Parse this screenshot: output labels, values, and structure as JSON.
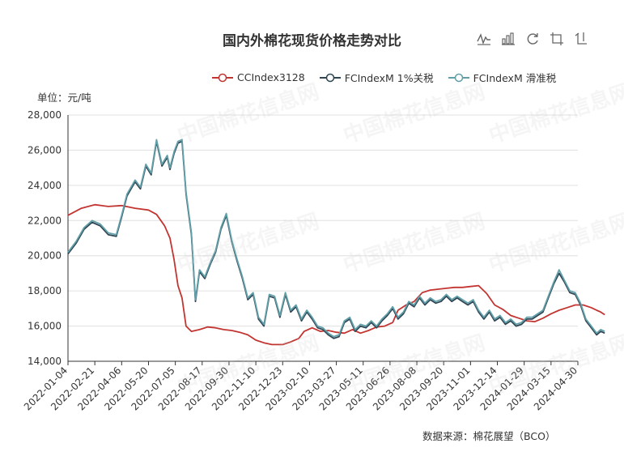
{
  "title": "国内外棉花现货价格走势对比",
  "unit_label": "单位：元/吨",
  "source_label": "数据来源：棉花展望（BCO）",
  "watermark_text": "中国棉花信息网",
  "toolbar": [
    {
      "icon": "line-chart-icon"
    },
    {
      "icon": "bar-chart-icon"
    },
    {
      "icon": "restore-icon"
    },
    {
      "icon": "zoom-icon"
    },
    {
      "icon": "zoom-reset-icon"
    }
  ],
  "chart_data": {
    "type": "line",
    "title": "国内外棉花现货价格走势对比",
    "ylabel": "单位：元/吨",
    "ylim": [
      14000,
      28000
    ],
    "yticks": [
      "14,000",
      "16,000",
      "18,000",
      "20,000",
      "22,000",
      "24,000",
      "26,000",
      "28,000"
    ],
    "xticks": [
      "2022-01-04",
      "2022-02-21",
      "2022-04-06",
      "2022-05-20",
      "2022-07-05",
      "2022-08-17",
      "2022-09-30",
      "2022-11-10",
      "2022-12-23",
      "2023-02-10",
      "2023-03-27",
      "2023-05-11",
      "2023-06-26",
      "2023-08-08",
      "2023-09-20",
      "2023-11-01",
      "2023-12-14",
      "2024-01-29",
      "2024-03-15",
      "2024-04-30"
    ],
    "grid": true,
    "legend_position": "top-right",
    "series": [
      {
        "name": "CCIndex3128",
        "color": "#c23531",
        "points": [
          [
            0,
            22300
          ],
          [
            0.5,
            22700
          ],
          [
            1,
            22900
          ],
          [
            1.5,
            22800
          ],
          [
            2,
            22850
          ],
          [
            2.5,
            22700
          ],
          [
            3,
            22600
          ],
          [
            3.3,
            22350
          ],
          [
            3.6,
            21700
          ],
          [
            3.8,
            21000
          ],
          [
            3.95,
            19800
          ],
          [
            4.1,
            18300
          ],
          [
            4.25,
            17600
          ],
          [
            4.4,
            16000
          ],
          [
            4.6,
            15700
          ],
          [
            4.9,
            15800
          ],
          [
            5.2,
            15950
          ],
          [
            5.5,
            15900
          ],
          [
            5.8,
            15800
          ],
          [
            6.1,
            15750
          ],
          [
            6.4,
            15650
          ],
          [
            6.7,
            15500
          ],
          [
            7.0,
            15200
          ],
          [
            7.3,
            15050
          ],
          [
            7.6,
            14950
          ],
          [
            8.0,
            14950
          ],
          [
            8.3,
            15100
          ],
          [
            8.6,
            15300
          ],
          [
            8.8,
            15700
          ],
          [
            9.1,
            15900
          ],
          [
            9.4,
            15700
          ],
          [
            9.7,
            15750
          ],
          [
            10.0,
            15650
          ],
          [
            10.3,
            15600
          ],
          [
            10.6,
            15800
          ],
          [
            10.9,
            15600
          ],
          [
            11.2,
            15750
          ],
          [
            11.5,
            15950
          ],
          [
            11.8,
            16000
          ],
          [
            12.1,
            16200
          ],
          [
            12.3,
            16900
          ],
          [
            12.6,
            17200
          ],
          [
            12.9,
            17400
          ],
          [
            13.2,
            17900
          ],
          [
            13.5,
            18050
          ],
          [
            13.8,
            18100
          ],
          [
            14.1,
            18150
          ],
          [
            14.4,
            18200
          ],
          [
            14.7,
            18200
          ],
          [
            15.0,
            18250
          ],
          [
            15.3,
            18300
          ],
          [
            15.6,
            17850
          ],
          [
            15.9,
            17200
          ],
          [
            16.2,
            16950
          ],
          [
            16.5,
            16600
          ],
          [
            16.8,
            16450
          ],
          [
            17.1,
            16300
          ],
          [
            17.4,
            16250
          ],
          [
            17.7,
            16450
          ],
          [
            18.0,
            16700
          ],
          [
            18.3,
            16900
          ],
          [
            18.6,
            17050
          ],
          [
            18.9,
            17200
          ],
          [
            19.2,
            17200
          ],
          [
            19.5,
            17050
          ],
          [
            19.7,
            16900
          ],
          [
            19.85,
            16800
          ],
          [
            20,
            16650
          ]
        ]
      },
      {
        "name": "FCIndexM 1%关税",
        "color": "#2f4554",
        "points": [
          [
            0,
            20100
          ],
          [
            0.3,
            20700
          ],
          [
            0.6,
            21500
          ],
          [
            0.9,
            21900
          ],
          [
            1.2,
            21700
          ],
          [
            1.5,
            21200
          ],
          [
            1.8,
            21100
          ],
          [
            2.0,
            22200
          ],
          [
            2.2,
            23400
          ],
          [
            2.5,
            24200
          ],
          [
            2.7,
            23800
          ],
          [
            2.9,
            25100
          ],
          [
            3.1,
            24600
          ],
          [
            3.3,
            26500
          ],
          [
            3.5,
            25100
          ],
          [
            3.7,
            25600
          ],
          [
            3.8,
            24900
          ],
          [
            3.95,
            25800
          ],
          [
            4.1,
            26400
          ],
          [
            4.25,
            26500
          ],
          [
            4.4,
            23500
          ],
          [
            4.6,
            21200
          ],
          [
            4.75,
            17400
          ],
          [
            4.9,
            19100
          ],
          [
            5.1,
            18700
          ],
          [
            5.3,
            19500
          ],
          [
            5.5,
            20200
          ],
          [
            5.7,
            21500
          ],
          [
            5.9,
            22300
          ],
          [
            6.1,
            20800
          ],
          [
            6.3,
            19700
          ],
          [
            6.5,
            18700
          ],
          [
            6.7,
            17500
          ],
          [
            6.9,
            17800
          ],
          [
            7.1,
            16400
          ],
          [
            7.3,
            16000
          ],
          [
            7.5,
            17700
          ],
          [
            7.7,
            17600
          ],
          [
            7.9,
            16500
          ],
          [
            8.1,
            17800
          ],
          [
            8.3,
            16800
          ],
          [
            8.5,
            17100
          ],
          [
            8.7,
            16300
          ],
          [
            8.9,
            16800
          ],
          [
            9.1,
            16400
          ],
          [
            9.3,
            15900
          ],
          [
            9.5,
            15800
          ],
          [
            9.7,
            15500
          ],
          [
            9.9,
            15300
          ],
          [
            10.1,
            15400
          ],
          [
            10.3,
            16200
          ],
          [
            10.5,
            16400
          ],
          [
            10.7,
            15700
          ],
          [
            10.9,
            16000
          ],
          [
            11.1,
            15900
          ],
          [
            11.3,
            16200
          ],
          [
            11.5,
            15900
          ],
          [
            11.7,
            16300
          ],
          [
            11.9,
            16600
          ],
          [
            12.1,
            17000
          ],
          [
            12.3,
            16400
          ],
          [
            12.5,
            16700
          ],
          [
            12.7,
            17300
          ],
          [
            12.9,
            17100
          ],
          [
            13.1,
            17600
          ],
          [
            13.3,
            17200
          ],
          [
            13.5,
            17500
          ],
          [
            13.7,
            17300
          ],
          [
            13.9,
            17400
          ],
          [
            14.1,
            17700
          ],
          [
            14.3,
            17400
          ],
          [
            14.5,
            17600
          ],
          [
            14.7,
            17400
          ],
          [
            14.9,
            17200
          ],
          [
            15.1,
            17400
          ],
          [
            15.3,
            16800
          ],
          [
            15.5,
            16400
          ],
          [
            15.7,
            16800
          ],
          [
            15.9,
            16300
          ],
          [
            16.1,
            16500
          ],
          [
            16.3,
            16100
          ],
          [
            16.5,
            16300
          ],
          [
            16.7,
            16000
          ],
          [
            16.9,
            16100
          ],
          [
            17.1,
            16400
          ],
          [
            17.3,
            16400
          ],
          [
            17.5,
            16600
          ],
          [
            17.7,
            16800
          ],
          [
            17.9,
            17600
          ],
          [
            18.1,
            18400
          ],
          [
            18.3,
            19000
          ],
          [
            18.5,
            18500
          ],
          [
            18.7,
            17900
          ],
          [
            18.9,
            17800
          ],
          [
            19.1,
            17200
          ],
          [
            19.3,
            16300
          ],
          [
            19.5,
            15900
          ],
          [
            19.7,
            15500
          ],
          [
            19.85,
            15700
          ],
          [
            20,
            15600
          ]
        ]
      },
      {
        "name": "FCIndexM 滑准税",
        "color": "#61a0a8",
        "points": [
          [
            0,
            20200
          ],
          [
            0.3,
            20800
          ],
          [
            0.6,
            21600
          ],
          [
            0.9,
            22000
          ],
          [
            1.2,
            21800
          ],
          [
            1.5,
            21300
          ],
          [
            1.8,
            21200
          ],
          [
            2.0,
            22300
          ],
          [
            2.2,
            23500
          ],
          [
            2.5,
            24300
          ],
          [
            2.7,
            23900
          ],
          [
            2.9,
            25200
          ],
          [
            3.1,
            24700
          ],
          [
            3.3,
            26600
          ],
          [
            3.5,
            25200
          ],
          [
            3.7,
            25700
          ],
          [
            3.8,
            25000
          ],
          [
            3.95,
            25900
          ],
          [
            4.1,
            26500
          ],
          [
            4.25,
            26600
          ],
          [
            4.4,
            23600
          ],
          [
            4.6,
            21300
          ],
          [
            4.75,
            17500
          ],
          [
            4.9,
            19200
          ],
          [
            5.1,
            18800
          ],
          [
            5.3,
            19600
          ],
          [
            5.5,
            20300
          ],
          [
            5.7,
            21600
          ],
          [
            5.9,
            22400
          ],
          [
            6.1,
            20900
          ],
          [
            6.3,
            19800
          ],
          [
            6.5,
            18800
          ],
          [
            6.7,
            17600
          ],
          [
            6.9,
            17900
          ],
          [
            7.1,
            16500
          ],
          [
            7.3,
            16100
          ],
          [
            7.5,
            17800
          ],
          [
            7.7,
            17700
          ],
          [
            7.9,
            16600
          ],
          [
            8.1,
            17900
          ],
          [
            8.3,
            16900
          ],
          [
            8.5,
            17200
          ],
          [
            8.7,
            16400
          ],
          [
            8.9,
            16900
          ],
          [
            9.1,
            16500
          ],
          [
            9.3,
            16000
          ],
          [
            9.5,
            15900
          ],
          [
            9.7,
            15600
          ],
          [
            9.9,
            15400
          ],
          [
            10.1,
            15500
          ],
          [
            10.3,
            16300
          ],
          [
            10.5,
            16500
          ],
          [
            10.7,
            15800
          ],
          [
            10.9,
            16100
          ],
          [
            11.1,
            16000
          ],
          [
            11.3,
            16300
          ],
          [
            11.5,
            16000
          ],
          [
            11.7,
            16400
          ],
          [
            11.9,
            16700
          ],
          [
            12.1,
            17100
          ],
          [
            12.3,
            16500
          ],
          [
            12.5,
            16800
          ],
          [
            12.7,
            17400
          ],
          [
            12.9,
            17200
          ],
          [
            13.1,
            17700
          ],
          [
            13.3,
            17300
          ],
          [
            13.5,
            17600
          ],
          [
            13.7,
            17400
          ],
          [
            13.9,
            17500
          ],
          [
            14.1,
            17800
          ],
          [
            14.3,
            17500
          ],
          [
            14.5,
            17700
          ],
          [
            14.7,
            17500
          ],
          [
            14.9,
            17300
          ],
          [
            15.1,
            17500
          ],
          [
            15.3,
            16900
          ],
          [
            15.5,
            16500
          ],
          [
            15.7,
            16900
          ],
          [
            15.9,
            16400
          ],
          [
            16.1,
            16600
          ],
          [
            16.3,
            16200
          ],
          [
            16.5,
            16400
          ],
          [
            16.7,
            16100
          ],
          [
            16.9,
            16200
          ],
          [
            17.1,
            16500
          ],
          [
            17.3,
            16500
          ],
          [
            17.5,
            16700
          ],
          [
            17.7,
            16900
          ],
          [
            17.9,
            17700
          ],
          [
            18.1,
            18500
          ],
          [
            18.3,
            19200
          ],
          [
            18.5,
            18600
          ],
          [
            18.7,
            18000
          ],
          [
            18.9,
            17900
          ],
          [
            19.1,
            17300
          ],
          [
            19.3,
            16400
          ],
          [
            19.5,
            16000
          ],
          [
            19.7,
            15600
          ],
          [
            19.85,
            15800
          ],
          [
            20,
            15700
          ]
        ]
      }
    ]
  }
}
